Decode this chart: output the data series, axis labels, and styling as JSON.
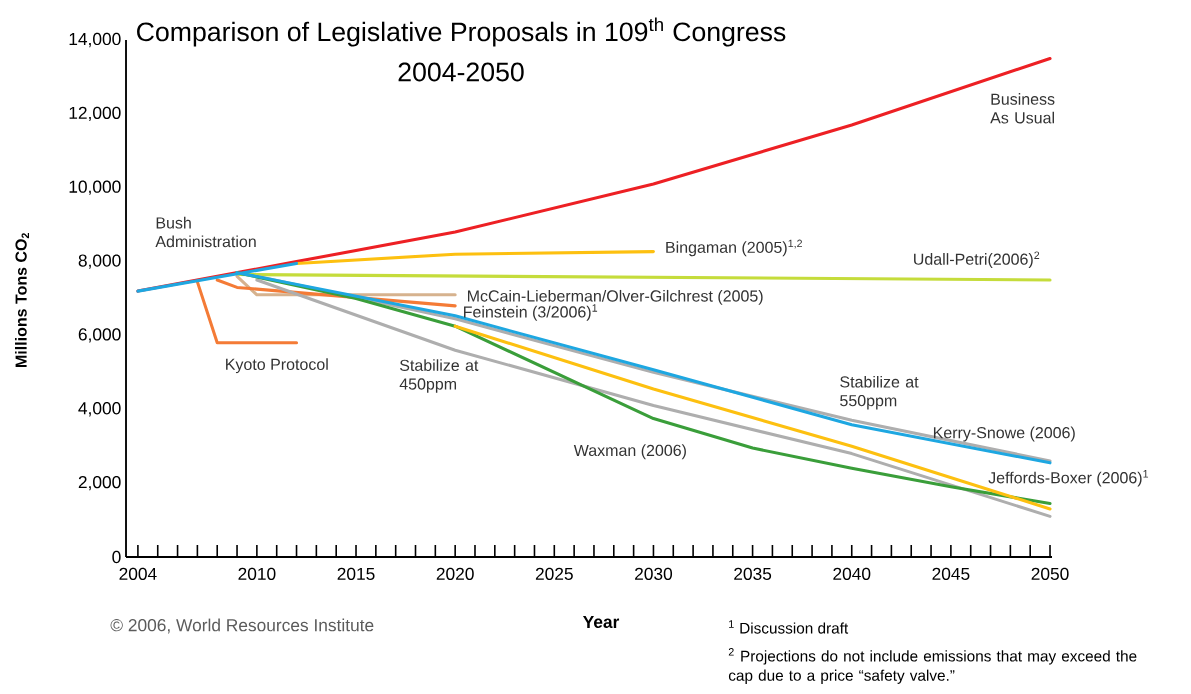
{
  "chart_data": {
    "type": "line",
    "title": "Comparison of Legislative Proposals in 109$^{th}$ Congress",
    "subtitle": "2004-2050",
    "xlabel": "Year",
    "ylabel": "Millions Tons CO$_{2}$",
    "xlim": [
      2003.4,
      2050.1
    ],
    "ylim": [
      0,
      14000
    ],
    "xticks": [
      2004,
      {
        "value": 2005,
        "label": null
      },
      {
        "value": 2006,
        "label": null
      },
      {
        "value": 2007,
        "label": null
      },
      {
        "value": 2008,
        "label": null
      },
      {
        "value": 2009,
        "label": null
      },
      2010,
      {
        "value": 2011,
        "label": null
      },
      {
        "value": 2012,
        "label": null
      },
      {
        "value": 2013,
        "label": null
      },
      {
        "value": 2014,
        "label": null
      },
      2015,
      {
        "value": 2016,
        "label": null
      },
      {
        "value": 2017,
        "label": null
      },
      {
        "value": 2018,
        "label": null
      },
      {
        "value": 2019,
        "label": null
      },
      2020,
      {
        "value": 2021,
        "label": null
      },
      {
        "value": 2022,
        "label": null
      },
      {
        "value": 2023,
        "label": null
      },
      {
        "value": 2024,
        "label": null
      },
      2025,
      {
        "value": 2026,
        "label": null
      },
      {
        "value": 2027,
        "label": null
      },
      {
        "value": 2028,
        "label": null
      },
      {
        "value": 2029,
        "label": null
      },
      2030,
      {
        "value": 2031,
        "label": null
      },
      {
        "value": 2032,
        "label": null
      },
      {
        "value": 2033,
        "label": null
      },
      {
        "value": 2034,
        "label": null
      },
      2035,
      {
        "value": 2036,
        "label": null
      },
      {
        "value": 2037,
        "label": null
      },
      {
        "value": 2038,
        "label": null
      },
      {
        "value": 2039,
        "label": null
      },
      2040,
      {
        "value": 2041,
        "label": null
      },
      {
        "value": 2042,
        "label": null
      },
      {
        "value": 2043,
        "label": null
      },
      {
        "value": 2044,
        "label": null
      },
      2045,
      {
        "value": 2046,
        "label": null
      },
      {
        "value": 2047,
        "label": null
      },
      {
        "value": 2048,
        "label": null
      },
      {
        "value": 2049,
        "label": null
      },
      2050
    ],
    "yticks": [
      0,
      {
        "value": 2000,
        "label": "2,000"
      },
      {
        "value": 4000,
        "label": "4,000"
      },
      {
        "value": 6000,
        "label": "6,000"
      },
      {
        "value": 8000,
        "label": "8,000"
      },
      {
        "value": 10000,
        "label": "10,000"
      },
      {
        "value": 12000,
        "label": "12,000"
      },
      {
        "value": 14000,
        "label": "14,000"
      }
    ],
    "series": [
      {
        "name": "Business As Usual",
        "color": "#ed2024",
        "x": [
          2004,
          2012,
          2020,
          2030,
          2040,
          2050
        ],
        "values": [
          7200,
          8000,
          8800,
          10100,
          11700,
          13500
        ]
      },
      {
        "name": "Bingaman (2005)$^{1,2}$",
        "color": "#fdc010",
        "x": [
          2012,
          2020,
          2030
        ],
        "values": [
          7950,
          8200,
          8270
        ]
      },
      {
        "name": "Udall-Petri(2006)$^{2}$",
        "color": "#c5dc3b",
        "x": [
          2009,
          2050
        ],
        "values": [
          7650,
          7500
        ]
      },
      {
        "name": "McCain-Lieberman/Olver-Gilchrest (2005)",
        "color": "#d6b28e",
        "x": [
          2009,
          2010,
          2020
        ],
        "values": [
          7600,
          7100,
          7100
        ]
      },
      {
        "name": "Feinstein (3/2006)$^{1}$",
        "color": "#f47b36",
        "x": [
          2008,
          2009,
          2020
        ],
        "values": [
          7500,
          7300,
          6800
        ]
      },
      {
        "name": "Kyoto Protocol",
        "color": "#f47b36",
        "x": [
          2007,
          2008,
          2012
        ],
        "values": [
          7450,
          5800,
          5800
        ]
      },
      {
        "name": "Stabilize at 450ppm",
        "color": "#aeaeae",
        "x": [
          2010,
          2020,
          2030,
          2040,
          2050
        ],
        "values": [
          7500,
          5600,
          4100,
          2800,
          1100
        ]
      },
      {
        "name": "Stabilize at 550ppm",
        "color": "#aeaeae",
        "x": [
          2010,
          2020,
          2030,
          2040,
          2050
        ],
        "values": [
          7600,
          6450,
          5000,
          3700,
          2600
        ]
      },
      {
        "name": "Waxman (2006)",
        "color": "#3a9e3a",
        "x": [
          2009,
          2015,
          2020,
          2025,
          2030,
          2035,
          2040,
          2045,
          2050
        ],
        "values": [
          7700,
          7000,
          6250,
          5000,
          3750,
          2950,
          2400,
          1900,
          1450
        ]
      },
      {
        "name": "Jeffords-Boxer (2006)$^{1}$",
        "color": "#fdc010",
        "x": [
          2020,
          2030,
          2040,
          2050
        ],
        "values": [
          6250,
          4550,
          3000,
          1300
        ]
      },
      {
        "name": "Kerry-Snowe (2006)",
        "color": "#1ea7e1",
        "x": [
          2009,
          2020,
          2030,
          2040,
          2050
        ],
        "values": [
          7700,
          6530,
          5070,
          3580,
          2550
        ]
      },
      {
        "name": "Bush Administration",
        "color": "#1ea7e1",
        "x": [
          2004,
          2012
        ],
        "values": [
          7200,
          7950
        ]
      }
    ],
    "annotations": [
      "© 2006, World Resources Institute",
      "$^{1}$ Discussion draft",
      "$^{2}$ Projections do not include emissions that may exceed the cap due to a price “safety valve.”"
    ]
  }
}
